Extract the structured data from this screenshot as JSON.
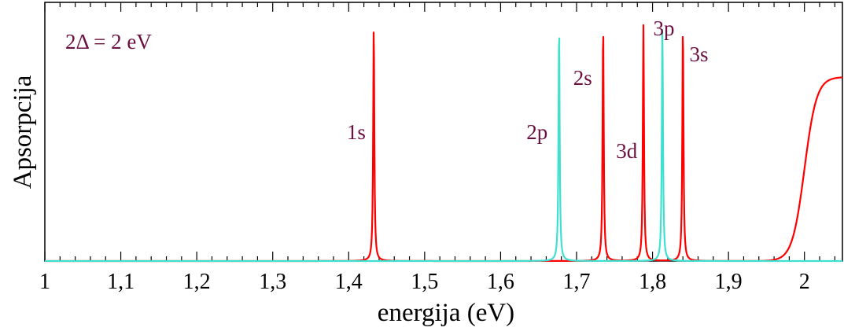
{
  "chart_data": {
    "type": "line",
    "title": "",
    "xlabel": "energija (eV)",
    "ylabel": "Apsorpcija",
    "xlim": [
      1.0,
      2.05
    ],
    "ylim": [
      0,
      1.0
    ],
    "xticks": [
      1.0,
      1.1,
      1.2,
      1.3,
      1.4,
      1.5,
      1.6,
      1.7,
      1.8,
      1.9,
      2.0
    ],
    "xtick_labels": [
      "1",
      "1,1",
      "1,2",
      "1,3",
      "1,4",
      "1,5",
      "1,6",
      "1,7",
      "1,8",
      "1,9",
      "2"
    ],
    "annotation": "2Δ = 2 eV",
    "grid": false,
    "series": [
      {
        "color": "#ff0000",
        "kind": "lorentzian-peaks",
        "peaks": [
          {
            "label": "1s",
            "x": 1.433,
            "height": 1.0
          },
          {
            "label": "2s",
            "x": 1.735,
            "height": 1.0
          },
          {
            "label": "3d",
            "x": 1.788,
            "height": 1.0
          },
          {
            "label": "3s",
            "x": 1.84,
            "height": 1.0
          }
        ],
        "continuum": {
          "onset": 2.0,
          "level": 0.78
        }
      },
      {
        "color": "#40e0d0",
        "kind": "lorentzian-peaks",
        "peaks": [
          {
            "label": "2p",
            "x": 1.677,
            "height": 1.0
          },
          {
            "label": "3p",
            "x": 1.813,
            "height": 1.0
          }
        ]
      }
    ],
    "peak_labels": [
      {
        "text": "1s",
        "x": 1.41,
        "y": 0.55
      },
      {
        "text": "2p",
        "x": 1.648,
        "y": 0.55
      },
      {
        "text": "2s",
        "x": 1.708,
        "y": 0.78
      },
      {
        "text": "3d",
        "x": 1.766,
        "y": 0.47
      },
      {
        "text": "3p",
        "x": 1.815,
        "y": 0.99
      },
      {
        "text": "3s",
        "x": 1.861,
        "y": 0.88
      }
    ],
    "label_color": "#6b1040"
  }
}
